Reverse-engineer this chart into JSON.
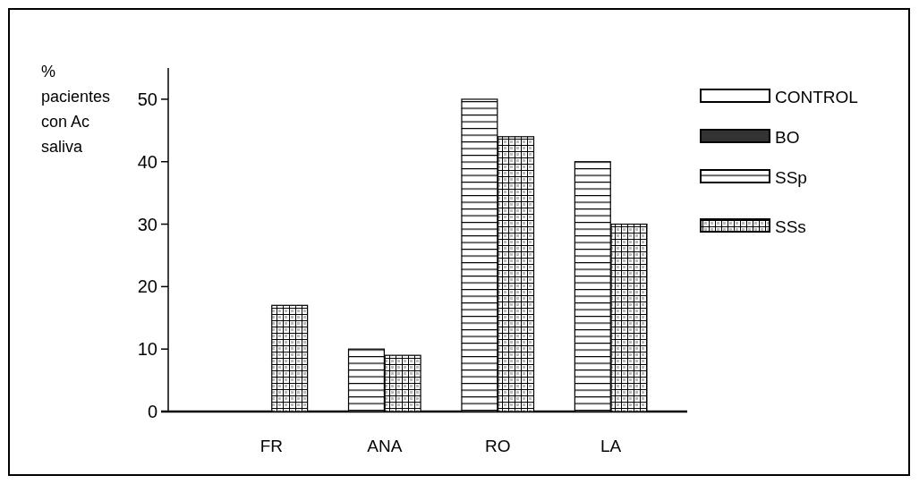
{
  "chart_data": {
    "type": "bar",
    "ylabel": "% pacientes con Ac saliva",
    "categories": [
      "FR",
      "ANA",
      "RO",
      "LA"
    ],
    "series": [
      {
        "name": "CONTROL",
        "color": "#ffffff",
        "values": [
          null,
          null,
          null,
          null
        ]
      },
      {
        "name": "BO",
        "color": "#333333",
        "values": [
          null,
          null,
          null,
          null
        ]
      },
      {
        "name": "SSp",
        "color": "#000000",
        "values": [
          0,
          10,
          50,
          40
        ]
      },
      {
        "name": "SSs",
        "color": "#000000",
        "values": [
          17,
          9,
          44,
          30
        ]
      }
    ],
    "ylim": [
      0,
      55
    ],
    "yticks": [
      0,
      10,
      20,
      30,
      40,
      50
    ],
    "grid": false,
    "legend": "right"
  }
}
